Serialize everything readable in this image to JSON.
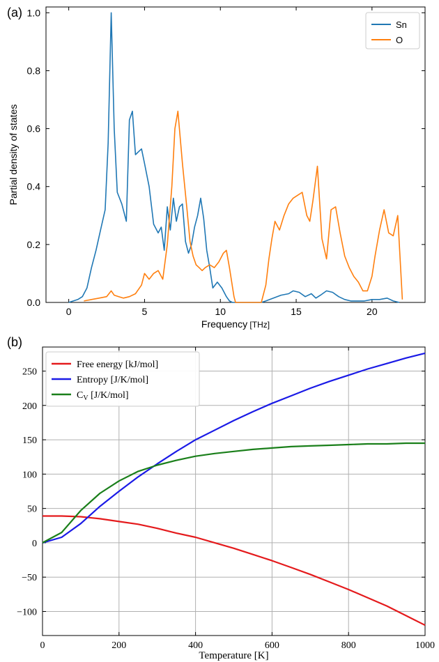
{
  "chart_data": [
    {
      "panel_label": "(a)",
      "type": "line",
      "xlabel": "Frequency",
      "xlabel_unit": "[THz]",
      "ylabel": "Partial density of states",
      "xlim": [
        -1.5,
        23.5
      ],
      "ylim": [
        0.0,
        1.02
      ],
      "xticks": [
        0,
        5,
        10,
        15,
        20
      ],
      "xtick_labels": [
        "0",
        "5",
        "10",
        "15",
        "20"
      ],
      "yticks": [
        0.0,
        0.2,
        0.4,
        0.6,
        0.8,
        1.0
      ],
      "ytick_labels": [
        "0.0",
        "0.2",
        "0.4",
        "0.6",
        "0.8",
        "1.0"
      ],
      "grid": false,
      "legend_position": "top-right",
      "colors": {
        "Sn": "#1f77b4",
        "O": "#ff7f0e"
      },
      "series": [
        {
          "name": "Sn",
          "color": "#1f77b4",
          "x": [
            0.0,
            0.3,
            0.6,
            0.9,
            1.2,
            1.5,
            1.8,
            2.1,
            2.4,
            2.6,
            2.8,
            3.0,
            3.2,
            3.5,
            3.8,
            4.0,
            4.2,
            4.4,
            4.6,
            4.8,
            5.0,
            5.3,
            5.6,
            5.9,
            6.1,
            6.3,
            6.5,
            6.7,
            6.9,
            7.1,
            7.3,
            7.5,
            7.7,
            7.9,
            8.1,
            8.3,
            8.5,
            8.7,
            8.9,
            9.1,
            9.3,
            9.5,
            9.8,
            10.1,
            10.4,
            10.6,
            10.8,
            11.0,
            12.7,
            13.0,
            13.5,
            14.0,
            14.5,
            14.8,
            15.2,
            15.6,
            16.0,
            16.3,
            16.6,
            17.0,
            17.4,
            17.8,
            18.2,
            18.6,
            19.0,
            19.5,
            20.0,
            20.5,
            21.0,
            21.4,
            21.8
          ],
          "y": [
            0.0,
            0.005,
            0.01,
            0.02,
            0.05,
            0.12,
            0.18,
            0.25,
            0.32,
            0.55,
            1.0,
            0.6,
            0.38,
            0.34,
            0.28,
            0.63,
            0.66,
            0.51,
            0.52,
            0.53,
            0.48,
            0.4,
            0.27,
            0.24,
            0.26,
            0.18,
            0.33,
            0.25,
            0.36,
            0.28,
            0.33,
            0.34,
            0.21,
            0.17,
            0.2,
            0.26,
            0.3,
            0.36,
            0.29,
            0.18,
            0.12,
            0.05,
            0.07,
            0.05,
            0.02,
            0.005,
            0.0,
            0.0,
            0.0,
            0.005,
            0.015,
            0.025,
            0.03,
            0.04,
            0.035,
            0.02,
            0.03,
            0.015,
            0.025,
            0.04,
            0.035,
            0.02,
            0.01,
            0.005,
            0.005,
            0.005,
            0.01,
            0.01,
            0.015,
            0.005,
            0.0
          ]
        },
        {
          "name": "O",
          "color": "#ff7f0e",
          "x": [
            1.0,
            1.5,
            2.0,
            2.5,
            2.8,
            3.0,
            3.3,
            3.6,
            4.0,
            4.4,
            4.8,
            5.0,
            5.3,
            5.6,
            5.9,
            6.2,
            6.5,
            6.8,
            7.0,
            7.2,
            7.5,
            7.8,
            8.0,
            8.2,
            8.4,
            8.6,
            8.8,
            9.0,
            9.3,
            9.6,
            9.9,
            10.2,
            10.4,
            10.6,
            10.9,
            11.0,
            12.7,
            13.0,
            13.2,
            13.4,
            13.6,
            13.9,
            14.2,
            14.5,
            14.8,
            15.1,
            15.4,
            15.7,
            15.9,
            16.1,
            16.4,
            16.7,
            17.0,
            17.3,
            17.6,
            17.9,
            18.2,
            18.5,
            18.8,
            19.1,
            19.4,
            19.7,
            20.0,
            20.2,
            20.5,
            20.8,
            21.1,
            21.4,
            21.7,
            22.0
          ],
          "y": [
            0.005,
            0.01,
            0.015,
            0.02,
            0.04,
            0.025,
            0.02,
            0.015,
            0.02,
            0.03,
            0.06,
            0.1,
            0.08,
            0.1,
            0.11,
            0.08,
            0.2,
            0.4,
            0.6,
            0.66,
            0.48,
            0.32,
            0.21,
            0.16,
            0.13,
            0.12,
            0.11,
            0.12,
            0.13,
            0.12,
            0.14,
            0.17,
            0.18,
            0.12,
            0.02,
            0.0,
            0.0,
            0.06,
            0.15,
            0.22,
            0.28,
            0.25,
            0.3,
            0.34,
            0.36,
            0.37,
            0.38,
            0.3,
            0.28,
            0.35,
            0.47,
            0.22,
            0.15,
            0.32,
            0.33,
            0.24,
            0.16,
            0.12,
            0.09,
            0.07,
            0.04,
            0.04,
            0.09,
            0.16,
            0.25,
            0.32,
            0.24,
            0.23,
            0.3,
            0.01
          ]
        }
      ]
    },
    {
      "panel_label": "(b)",
      "type": "line",
      "xlabel": "Temperature [K]",
      "ylabel": "",
      "xlim": [
        0,
        1000
      ],
      "ylim": [
        -135,
        285
      ],
      "xticks": [
        0,
        200,
        400,
        600,
        800,
        1000
      ],
      "xtick_labels": [
        "0",
        "200",
        "400",
        "600",
        "800",
        "1000"
      ],
      "yticks": [
        -100,
        -50,
        0,
        50,
        100,
        150,
        200,
        250
      ],
      "ytick_labels": [
        "−100",
        "−50",
        "0",
        "50",
        "100",
        "150",
        "200",
        "250"
      ],
      "grid": true,
      "legend_position": "top-left",
      "series": [
        {
          "name": "Free energy [kJ/mol]",
          "color": "#e41a1c",
          "x": [
            0,
            50,
            100,
            150,
            200,
            250,
            300,
            350,
            400,
            450,
            500,
            550,
            600,
            650,
            700,
            750,
            800,
            850,
            900,
            950,
            1000
          ],
          "y": [
            39,
            39,
            38,
            35,
            31,
            27,
            21,
            14,
            8,
            0,
            -8,
            -17,
            -26,
            -36,
            -46,
            -57,
            -68,
            -80,
            -92,
            -106,
            -120
          ]
        },
        {
          "name": "Entropy [J/K/mol]",
          "color": "#1a1ae6",
          "x": [
            0,
            50,
            100,
            150,
            200,
            250,
            300,
            350,
            400,
            450,
            500,
            550,
            600,
            650,
            700,
            750,
            800,
            850,
            900,
            950,
            1000
          ],
          "y": [
            0,
            8,
            28,
            53,
            75,
            96,
            115,
            133,
            150,
            164,
            178,
            191,
            203,
            214,
            225,
            235,
            244,
            253,
            261,
            269,
            276
          ]
        },
        {
          "name_main": "C",
          "name_sub": "V",
          "name_rest": " [J/K/mol]",
          "color": "#1a7f1a",
          "x": [
            0,
            50,
            100,
            150,
            200,
            250,
            300,
            350,
            400,
            450,
            500,
            550,
            600,
            650,
            700,
            750,
            800,
            850,
            900,
            950,
            1000
          ],
          "y": [
            0,
            15,
            47,
            72,
            90,
            104,
            113,
            120,
            126,
            130,
            133,
            136,
            138,
            140,
            141,
            142,
            143,
            144,
            144,
            145,
            145
          ]
        }
      ]
    }
  ]
}
